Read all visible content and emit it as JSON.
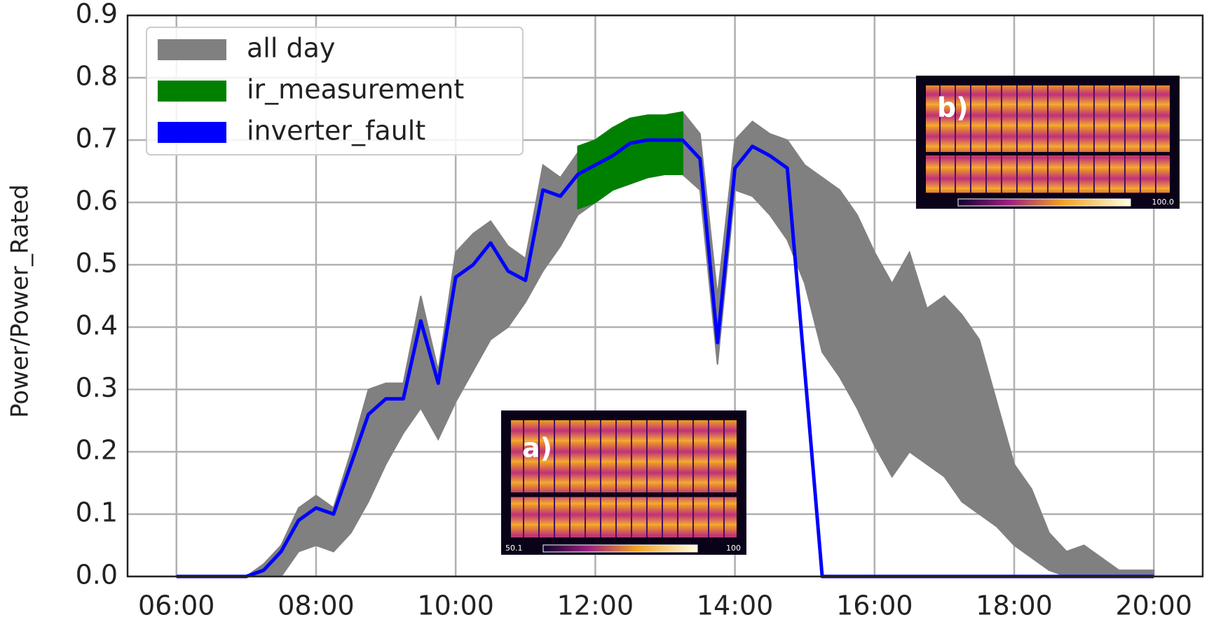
{
  "chart_data": {
    "type": "line",
    "ylabel": "Power/Power_Rated",
    "x": [
      6,
      6.25,
      6.5,
      6.75,
      7,
      7.25,
      7.5,
      7.75,
      8,
      8.25,
      8.5,
      8.75,
      9,
      9.25,
      9.5,
      9.75,
      10,
      10.25,
      10.5,
      10.75,
      11,
      11.25,
      11.5,
      11.75,
      12,
      12.25,
      12.5,
      12.75,
      13,
      13.25,
      13.5,
      13.75,
      14,
      14.25,
      14.5,
      14.75,
      15,
      15.25,
      15.5,
      15.75,
      16,
      16.25,
      16.5,
      16.75,
      17,
      17.25,
      17.5,
      17.75,
      18,
      18.25,
      18.5,
      18.75,
      19,
      19.25,
      19.5,
      19.75,
      20
    ],
    "xlim": [
      5.3,
      20.7
    ],
    "xticks": [
      {
        "value": 6,
        "label": "06:00"
      },
      {
        "value": 8,
        "label": "08:00"
      },
      {
        "value": 10,
        "label": "10:00"
      },
      {
        "value": 12,
        "label": "12:00"
      },
      {
        "value": 14,
        "label": "14:00"
      },
      {
        "value": 16,
        "label": "16:00"
      },
      {
        "value": 18,
        "label": "18:00"
      },
      {
        "value": 20,
        "label": "20:00"
      }
    ],
    "ylim": [
      0,
      0.9
    ],
    "yticks": [
      {
        "value": 0,
        "label": "0.0"
      },
      0.1,
      0.2,
      0.3,
      0.4,
      0.5,
      0.6,
      0.7,
      0.8,
      0.9
    ],
    "grid": true,
    "legend": "upper left",
    "series": [
      {
        "name": "all day",
        "color": "#808080",
        "high": [
          0,
          0,
          0,
          0,
          0,
          0.02,
          0.05,
          0.11,
          0.13,
          0.11,
          0.2,
          0.3,
          0.31,
          0.31,
          0.45,
          0.33,
          0.52,
          0.55,
          0.57,
          0.53,
          0.51,
          0.66,
          0.64,
          0.68,
          0.7,
          0.72,
          0.73,
          0.74,
          0.74,
          0.745,
          0.71,
          0.45,
          0.7,
          0.73,
          0.71,
          0.7,
          0.66,
          0.64,
          0.62,
          0.58,
          0.52,
          0.47,
          0.52,
          0.43,
          0.45,
          0.42,
          0.38,
          0.28,
          0.18,
          0.14,
          0.07,
          0.04,
          0.05,
          0.03,
          0.01,
          0.01,
          0.01
        ],
        "low": [
          0,
          0,
          0,
          0,
          0,
          0,
          0,
          0.04,
          0.05,
          0.04,
          0.07,
          0.12,
          0.18,
          0.23,
          0.27,
          0.22,
          0.28,
          0.33,
          0.38,
          0.4,
          0.44,
          0.49,
          0.53,
          0.58,
          0.6,
          0.62,
          0.63,
          0.64,
          0.645,
          0.645,
          0.62,
          0.34,
          0.62,
          0.61,
          0.58,
          0.54,
          0.47,
          0.36,
          0.32,
          0.27,
          0.21,
          0.16,
          0.2,
          0.18,
          0.16,
          0.12,
          0.1,
          0.08,
          0.05,
          0.03,
          0.01,
          0,
          0,
          0,
          0,
          0,
          0
        ]
      },
      {
        "name": "ir_measurement",
        "color": "#008000",
        "x": [
          11.75,
          12,
          12.25,
          12.5,
          12.75,
          13,
          13.25
        ],
        "high": [
          0.69,
          0.7,
          0.72,
          0.735,
          0.74,
          0.74,
          0.745
        ],
        "low": [
          0.59,
          0.6,
          0.62,
          0.63,
          0.64,
          0.645,
          0.645
        ]
      },
      {
        "name": "inverter_fault",
        "color": "#0000ff",
        "values": [
          0,
          0,
          0,
          0,
          0,
          0.01,
          0.04,
          0.09,
          0.11,
          0.1,
          0.18,
          0.26,
          0.285,
          0.285,
          0.41,
          0.31,
          0.48,
          0.5,
          0.535,
          0.49,
          0.475,
          0.62,
          0.61,
          0.645,
          0.66,
          0.675,
          0.695,
          0.7,
          0.7,
          0.7,
          0.67,
          0.375,
          0.655,
          0.69,
          0.675,
          0.655,
          0.33,
          0,
          0,
          0,
          0,
          0,
          0,
          0,
          0,
          0,
          0,
          0,
          0,
          0,
          0,
          0,
          0,
          0,
          0,
          0,
          0
        ]
      }
    ]
  },
  "insets": [
    {
      "label": "a)",
      "scale_texts": [
        "50.1",
        "100"
      ]
    },
    {
      "label": "b)",
      "scale_texts": [
        "100.0"
      ]
    }
  ]
}
